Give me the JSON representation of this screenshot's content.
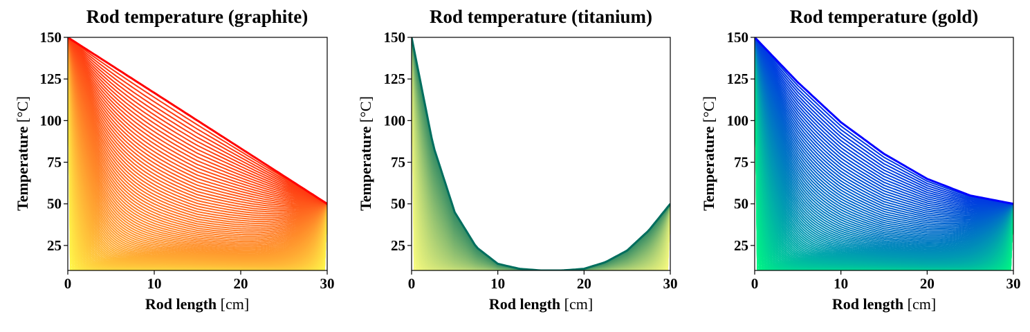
{
  "chart_data": [
    {
      "type": "line",
      "title": "Rod temperature (graphite)",
      "xlabel": {
        "bold": "Rod length",
        "unit": "[cm]"
      },
      "ylabel": {
        "bold": "Temperature",
        "unit": "[°C]"
      },
      "xlim": [
        0,
        30
      ],
      "ylim": [
        10,
        150
      ],
      "xticks": [
        0,
        10,
        20,
        30
      ],
      "yticks": [
        25,
        50,
        75,
        100,
        125,
        150
      ],
      "grid": false,
      "legend": "none",
      "colormap": [
        "#ffff4d",
        "#ff0000"
      ],
      "boundary": {
        "left": 150,
        "right": 50,
        "initial": 10
      },
      "curves": 120,
      "final_profile": {
        "x": [
          0,
          30
        ],
        "y": [
          150,
          50
        ]
      }
    },
    {
      "type": "line",
      "title": "Rod temperature (titanium)",
      "xlabel": {
        "bold": "Rod length",
        "unit": "[cm]"
      },
      "ylabel": {
        "bold": "Temperature",
        "unit": "[°C]"
      },
      "xlim": [
        0,
        30
      ],
      "ylim": [
        10,
        150
      ],
      "xticks": [
        0,
        10,
        20,
        30
      ],
      "yticks": [
        25,
        50,
        75,
        100,
        125,
        150
      ],
      "grid": false,
      "legend": "none",
      "colormap": [
        "#ffff80",
        "#006e5e"
      ],
      "boundary": {
        "left": 150,
        "right": 50,
        "initial": 10
      },
      "curves": 120,
      "final_profile": {
        "x": [
          0,
          2.5,
          5,
          7.5,
          10,
          12.5,
          15,
          17.5,
          20,
          22.5,
          25,
          27.5,
          30
        ],
        "y": [
          150,
          85,
          45,
          24,
          14,
          11,
          10,
          10,
          11,
          15,
          22,
          34,
          50
        ]
      }
    },
    {
      "type": "line",
      "title": "Rod temperature (gold)",
      "xlabel": {
        "bold": "Rod length",
        "unit": "[cm]"
      },
      "ylabel": {
        "bold": "Temperature",
        "unit": "[°C]"
      },
      "xlim": [
        0,
        30
      ],
      "ylim": [
        10,
        150
      ],
      "xticks": [
        0,
        10,
        20,
        30
      ],
      "yticks": [
        25,
        50,
        75,
        100,
        125,
        150
      ],
      "grid": false,
      "legend": "none",
      "colormap": [
        "#00ff7f",
        "#0000ff"
      ],
      "boundary": {
        "left": 150,
        "right": 50,
        "initial": 10
      },
      "curves": 120,
      "final_profile": {
        "x": [
          0,
          5,
          10,
          15,
          20,
          25,
          30
        ],
        "y": [
          150,
          123,
          99,
          80,
          65,
          55,
          50
        ]
      }
    }
  ]
}
